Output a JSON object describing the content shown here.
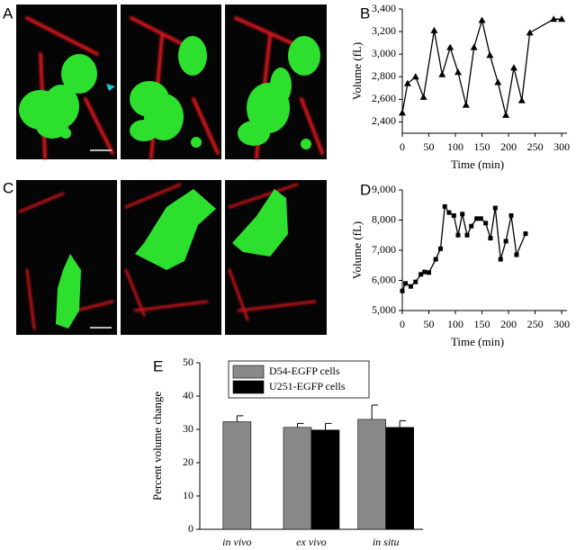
{
  "panel_labels": [
    "A",
    "B",
    "C",
    "D",
    "E"
  ],
  "chart_data": [
    {
      "type": "line",
      "marker": "triangle",
      "color": "#000000",
      "y_label": "Volume (fL)",
      "x_label": "Time (min)",
      "x": [
        0,
        10,
        25,
        40,
        60,
        75,
        90,
        105,
        120,
        135,
        150,
        165,
        180,
        195,
        210,
        225,
        240,
        285,
        300
      ],
      "values": [
        2480,
        2740,
        2800,
        2620,
        3210,
        2820,
        3060,
        2840,
        2550,
        3060,
        3300,
        2990,
        2750,
        2460,
        2880,
        2590,
        3190,
        3310,
        3310
      ],
      "xlim": [
        0,
        310
      ],
      "xticks": [
        0,
        50,
        100,
        150,
        200,
        250,
        300
      ],
      "ylim": [
        2300,
        3400
      ],
      "yticks": [
        {
          "value": 2400,
          "label": "2,400"
        },
        {
          "value": 2600,
          "label": "2,600"
        },
        {
          "value": 2800,
          "label": "2,800"
        },
        {
          "value": 3000,
          "label": "3,000"
        },
        {
          "value": 3200,
          "label": "3,200"
        },
        {
          "value": 3400,
          "label": "3,400"
        }
      ]
    },
    {
      "type": "line",
      "marker": "square",
      "color": "#000000",
      "y_label": "Volume (fL)",
      "x_label": "Time (min)",
      "x": [
        0,
        6,
        16,
        25,
        35,
        42,
        50,
        63,
        72,
        80,
        88,
        97,
        105,
        113,
        122,
        130,
        140,
        148,
        157,
        166,
        175,
        185,
        195,
        205,
        215,
        232
      ],
      "values": [
        5650,
        5900,
        5800,
        5950,
        6200,
        6280,
        6260,
        6700,
        7050,
        8450,
        8250,
        8150,
        7500,
        8200,
        7500,
        7800,
        8050,
        8050,
        7900,
        7400,
        8400,
        6700,
        7300,
        8150,
        6850,
        7550
      ],
      "xlim": [
        0,
        310
      ],
      "xticks": [
        0,
        50,
        100,
        150,
        200,
        250,
        300
      ],
      "ylim": [
        5000,
        9000
      ],
      "yticks": [
        {
          "value": 5000,
          "label": "5,000"
        },
        {
          "value": 6000,
          "label": "6,000"
        },
        {
          "value": 7000,
          "label": "7,000"
        },
        {
          "value": 8000,
          "label": "8,000"
        },
        {
          "value": 9000,
          "label": "9,000"
        }
      ]
    },
    {
      "type": "bar",
      "y_label": "Percent volume change",
      "categories": [
        "in vivo",
        "ex vivo",
        "in situ"
      ],
      "series": [
        {
          "name": "D54-EGFP cells",
          "color": "#898989",
          "values": [
            32.3,
            30.6,
            33.0
          ],
          "errors": [
            1.8,
            1.2,
            4.3
          ]
        },
        {
          "name": "U251-EGFP cells",
          "color": "#000000",
          "values": [
            null,
            29.8,
            30.6
          ],
          "errors": [
            null,
            2.0,
            2.0
          ]
        }
      ],
      "ylim": [
        0,
        50
      ],
      "yticks": [
        0,
        10,
        20,
        30,
        40,
        50
      ],
      "legend": "top"
    }
  ]
}
